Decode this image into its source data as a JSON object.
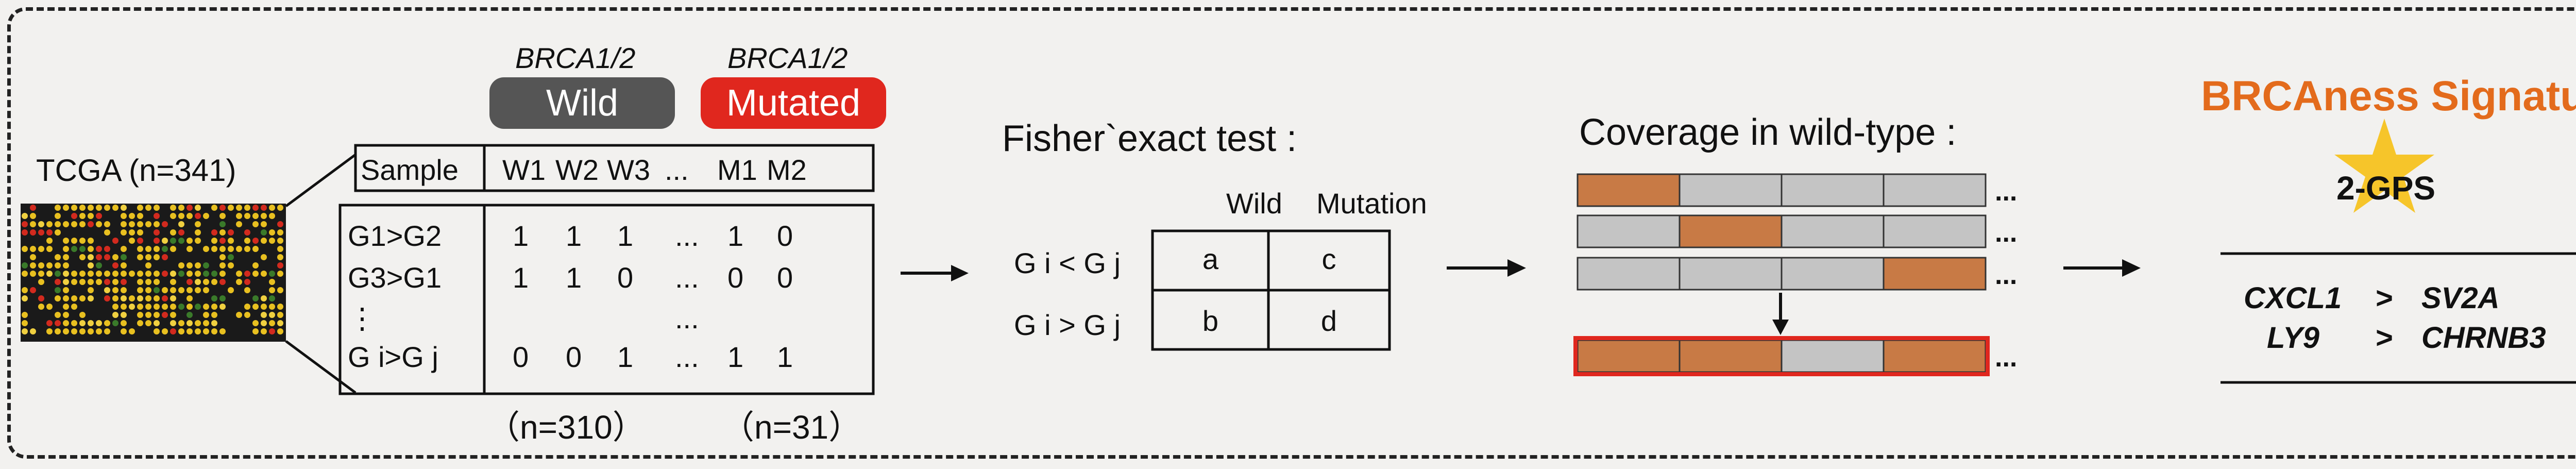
{
  "cohort": {
    "label": "TCGA (n=341)"
  },
  "groups": {
    "wild": {
      "gene_label": "BRCA1/2",
      "pill_label": "Wild",
      "color": "#555555"
    },
    "mutated": {
      "gene_label": "BRCA1/2",
      "pill_label": "Mutated",
      "color": "#e0271e"
    }
  },
  "matrix": {
    "header": [
      "Sample",
      "W1",
      "W2",
      "W3",
      "...",
      "M1",
      "M2"
    ],
    "rows": [
      {
        "label": "G1>G2",
        "values": [
          "1",
          "1",
          "1",
          "...",
          "1",
          "0"
        ]
      },
      {
        "label": "G3>G1",
        "values": [
          "1",
          "1",
          "0",
          "...",
          "0",
          "0"
        ]
      },
      {
        "label": "⋮",
        "values": [
          "",
          "",
          "",
          "...",
          "",
          ""
        ]
      },
      {
        "label": "G i>G j",
        "values": [
          "0",
          "0",
          "1",
          "...",
          "1",
          "1"
        ]
      }
    ],
    "n_wild": "（n=310）",
    "n_mut": "（n=31）"
  },
  "fisher": {
    "title": "Fisher`exact test :",
    "col_headers": [
      "Wild",
      "Mutation"
    ],
    "row_labels": [
      "G i < G j",
      "G i > G j"
    ],
    "cells": [
      [
        "a",
        "c"
      ],
      [
        "b",
        "d"
      ]
    ]
  },
  "coverage": {
    "title": "Coverage in wild-type :",
    "fill_color": "#c87a45",
    "empty_color": "#c4c4c4",
    "highlight_color": "#e0271e",
    "rows": [
      [
        1,
        0,
        0,
        0
      ],
      [
        0,
        1,
        0,
        0
      ],
      [
        0,
        0,
        0,
        1
      ]
    ],
    "result": [
      1,
      1,
      0,
      1
    ],
    "ellipsis": "..."
  },
  "signature": {
    "title": "BRCAness Signature",
    "gps_label": "2-GPS",
    "star_color": "#f6c52a",
    "pairs": [
      {
        "left": "CXCL1",
        "op": ">",
        "right": "SV2A"
      },
      {
        "left": "LY9",
        "op": ">",
        "right": "CHRNB3"
      }
    ]
  },
  "heatmap_colors": [
    "#1a1a1a",
    "#e8c020",
    "#d22a1e",
    "#3a7a2a",
    "#f0d040"
  ]
}
